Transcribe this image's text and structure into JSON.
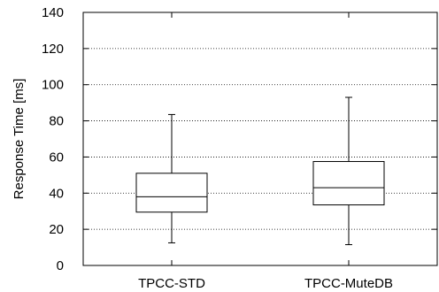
{
  "chart_data": {
    "type": "boxplot",
    "ylabel": "Response Time [ms]",
    "xlabel": "",
    "ylim": [
      0,
      140
    ],
    "yticks": [
      0,
      20,
      40,
      60,
      80,
      100,
      120,
      140
    ],
    "grid": "horizontal-dotted",
    "categories": [
      "TPCC-STD",
      "TPCC-MuteDB"
    ],
    "boxes": [
      {
        "label": "TPCC-STD",
        "whisker_low": 12.5,
        "q1": 29.5,
        "median": 38,
        "q3": 51,
        "whisker_high": 83.5
      },
      {
        "label": "TPCC-MuteDB",
        "whisker_low": 11.5,
        "q1": 33.5,
        "median": 43,
        "q3": 57.5,
        "whisker_high": 93
      }
    ]
  }
}
